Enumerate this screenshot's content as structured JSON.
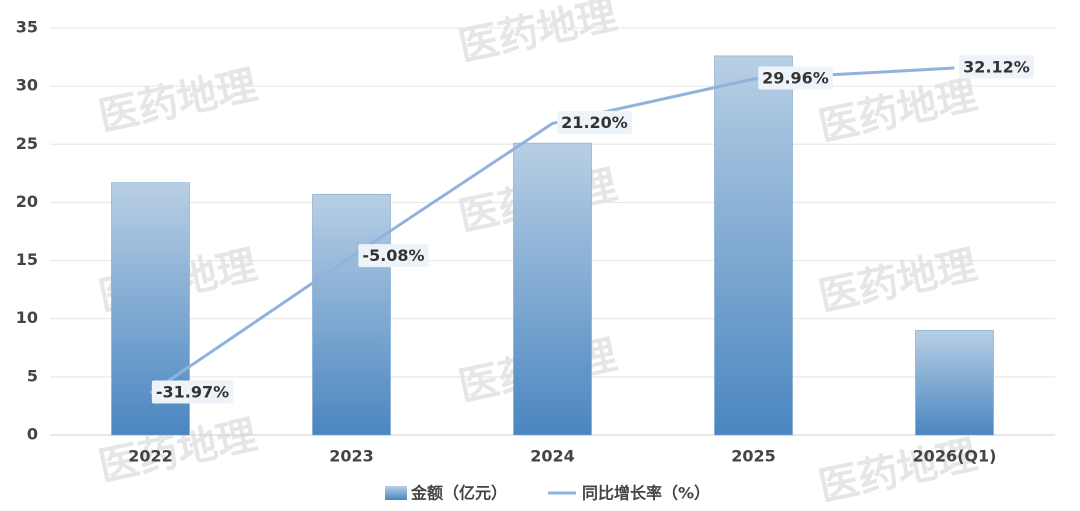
{
  "chart_data": {
    "type": "bar_line",
    "categories": [
      "2022",
      "2023",
      "2024",
      "2025",
      "2026(Q1)"
    ],
    "series": [
      {
        "name": "金额（亿元）",
        "type": "bar",
        "color": "#4a86c0",
        "values": [
          21.7,
          20.7,
          25.1,
          32.6,
          9.0
        ]
      },
      {
        "name": "同比增长率（%）",
        "type": "line",
        "axis": "y2",
        "color": "#8fb3dc",
        "values": [
          -31.97,
          -5.08,
          21.2,
          29.96,
          32.12
        ],
        "value_labels": [
          "-31.97%",
          "-5.08%",
          "21.20%",
          "29.96%",
          "32.12%"
        ]
      }
    ],
    "ylim": [
      0,
      35
    ],
    "yticks": [
      0,
      5,
      10,
      15,
      20,
      25,
      30,
      35
    ],
    "y2lim": [
      -40.25,
      40.02
    ],
    "grid": true,
    "legend": "bottom",
    "watermark": "医药地理"
  }
}
